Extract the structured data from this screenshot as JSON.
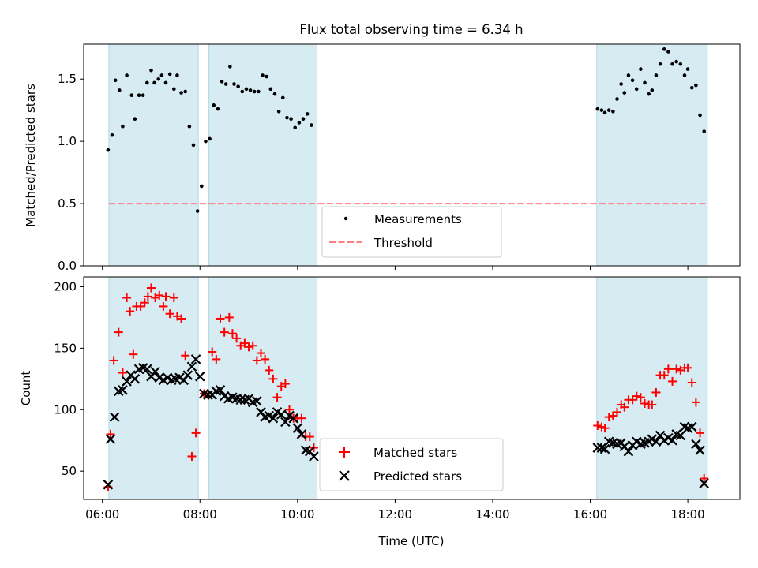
{
  "title": "Flux total observing time = 6.34 h",
  "xlabel": "Time (UTC)",
  "x_ticks": [
    "06:00",
    "08:00",
    "10:00",
    "12:00",
    "14:00",
    "16:00",
    "18:00"
  ],
  "colors": {
    "span": "#add8e6",
    "measurement": "#000000",
    "threshold": "#ff7f7f",
    "matched": "#ff0000",
    "predicted": "#000000"
  },
  "chart_data": [
    {
      "type": "scatter",
      "panel": "top",
      "ylabel": "Matched/Predicted stars",
      "xlim": [
        "05:37",
        "19:04"
      ],
      "ylim": [
        0,
        1.78
      ],
      "y_ticks": [
        "0.0",
        "0.5",
        "1.0",
        "1.5"
      ],
      "shaded_spans": [
        [
          "06:08",
          "07:58"
        ],
        [
          "08:11",
          "10:24"
        ],
        [
          "16:08",
          "18:24"
        ]
      ],
      "threshold": 0.5,
      "legend": [
        "Measurements",
        "Threshold"
      ],
      "legend_position": "lower center",
      "series": [
        {
          "name": "Measurements",
          "marker": "dot",
          "points": [
            [
              "06:07",
              0.93
            ],
            [
              "06:12",
              1.05
            ],
            [
              "06:16",
              1.49
            ],
            [
              "06:21",
              1.41
            ],
            [
              "06:25",
              1.12
            ],
            [
              "06:30",
              1.53
            ],
            [
              "06:36",
              1.37
            ],
            [
              "06:40",
              1.18
            ],
            [
              "06:45",
              1.37
            ],
            [
              "06:50",
              1.37
            ],
            [
              "06:55",
              1.47
            ],
            [
              "07:00",
              1.57
            ],
            [
              "07:04",
              1.47
            ],
            [
              "07:09",
              1.5
            ],
            [
              "07:13",
              1.53
            ],
            [
              "07:18",
              1.47
            ],
            [
              "07:23",
              1.54
            ],
            [
              "07:28",
              1.42
            ],
            [
              "07:32",
              1.53
            ],
            [
              "07:37",
              1.39
            ],
            [
              "07:42",
              1.4
            ],
            [
              "07:47",
              1.12
            ],
            [
              "07:52",
              0.97
            ],
            [
              "07:57",
              0.44
            ],
            [
              "08:02",
              0.64
            ],
            [
              "08:07",
              1.0
            ],
            [
              "08:12",
              1.02
            ],
            [
              "08:17",
              1.29
            ],
            [
              "08:22",
              1.26
            ],
            [
              "08:27",
              1.48
            ],
            [
              "08:32",
              1.46
            ],
            [
              "08:37",
              1.6
            ],
            [
              "08:42",
              1.46
            ],
            [
              "08:47",
              1.44
            ],
            [
              "08:52",
              1.4
            ],
            [
              "08:57",
              1.42
            ],
            [
              "09:02",
              1.41
            ],
            [
              "09:07",
              1.4
            ],
            [
              "09:12",
              1.4
            ],
            [
              "09:17",
              1.53
            ],
            [
              "09:22",
              1.52
            ],
            [
              "09:27",
              1.42
            ],
            [
              "09:32",
              1.38
            ],
            [
              "09:37",
              1.24
            ],
            [
              "09:42",
              1.35
            ],
            [
              "09:47",
              1.19
            ],
            [
              "09:52",
              1.18
            ],
            [
              "09:57",
              1.11
            ],
            [
              "10:02",
              1.15
            ],
            [
              "10:07",
              1.18
            ],
            [
              "10:12",
              1.22
            ],
            [
              "10:17",
              1.13
            ],
            [
              "16:09",
              1.26
            ],
            [
              "16:14",
              1.25
            ],
            [
              "16:18",
              1.23
            ],
            [
              "16:23",
              1.25
            ],
            [
              "16:28",
              1.24
            ],
            [
              "16:33",
              1.34
            ],
            [
              "16:38",
              1.46
            ],
            [
              "16:42",
              1.39
            ],
            [
              "16:47",
              1.53
            ],
            [
              "16:52",
              1.49
            ],
            [
              "16:57",
              1.42
            ],
            [
              "17:02",
              1.58
            ],
            [
              "17:07",
              1.47
            ],
            [
              "17:12",
              1.38
            ],
            [
              "17:16",
              1.41
            ],
            [
              "17:21",
              1.53
            ],
            [
              "17:26",
              1.62
            ],
            [
              "17:31",
              1.74
            ],
            [
              "17:36",
              1.72
            ],
            [
              "17:41",
              1.62
            ],
            [
              "17:46",
              1.64
            ],
            [
              "17:51",
              1.62
            ],
            [
              "17:56",
              1.53
            ],
            [
              "18:00",
              1.58
            ],
            [
              "18:05",
              1.43
            ],
            [
              "18:10",
              1.45
            ],
            [
              "18:15",
              1.21
            ],
            [
              "18:20",
              1.08
            ]
          ]
        }
      ]
    },
    {
      "type": "scatter",
      "panel": "bottom",
      "ylabel": "Count",
      "xlabel": "Time (UTC)",
      "xlim": [
        "05:37",
        "19:04"
      ],
      "ylim": [
        27,
        208
      ],
      "y_ticks": [
        "50",
        "100",
        "150",
        "200"
      ],
      "shaded_spans": [
        [
          "06:08",
          "07:58"
        ],
        [
          "08:11",
          "10:24"
        ],
        [
          "16:08",
          "18:24"
        ]
      ],
      "legend": [
        "Matched stars",
        "Predicted stars"
      ],
      "legend_position": "lower center",
      "series": [
        {
          "name": "Matched stars",
          "marker": "plus",
          "points": [
            [
              "06:07",
              37
            ],
            [
              "06:10",
              80
            ],
            [
              "06:14",
              140
            ],
            [
              "06:20",
              163
            ],
            [
              "06:25",
              130
            ],
            [
              "06:30",
              191
            ],
            [
              "06:34",
              180
            ],
            [
              "06:38",
              145
            ],
            [
              "06:42",
              184
            ],
            [
              "06:47",
              184
            ],
            [
              "06:52",
              187
            ],
            [
              "06:56",
              192
            ],
            [
              "07:00",
              199
            ],
            [
              "07:05",
              191
            ],
            [
              "07:10",
              193
            ],
            [
              "07:15",
              184
            ],
            [
              "07:18",
              192
            ],
            [
              "07:23",
              178
            ],
            [
              "07:28",
              191
            ],
            [
              "07:32",
              176
            ],
            [
              "07:37",
              174
            ],
            [
              "07:42",
              144
            ],
            [
              "07:50",
              62
            ],
            [
              "07:55",
              81
            ],
            [
              "08:05",
              113
            ],
            [
              "08:10",
              113
            ],
            [
              "08:15",
              147
            ],
            [
              "08:20",
              141
            ],
            [
              "08:25",
              174
            ],
            [
              "08:30",
              163
            ],
            [
              "08:36",
              175
            ],
            [
              "08:40",
              162
            ],
            [
              "08:45",
              158
            ],
            [
              "08:50",
              152
            ],
            [
              "08:55",
              154
            ],
            [
              "09:00",
              151
            ],
            [
              "09:05",
              152
            ],
            [
              "09:10",
              140
            ],
            [
              "09:15",
              146
            ],
            [
              "09:20",
              141
            ],
            [
              "09:25",
              132
            ],
            [
              "09:30",
              125
            ],
            [
              "09:35",
              110
            ],
            [
              "09:40",
              119
            ],
            [
              "09:45",
              121
            ],
            [
              "09:50",
              100
            ],
            [
              "09:55",
              93
            ],
            [
              "10:00",
              93
            ],
            [
              "10:05",
              93
            ],
            [
              "10:10",
              78
            ],
            [
              "10:15",
              78
            ],
            [
              "10:20",
              69
            ],
            [
              "16:09",
              87
            ],
            [
              "16:14",
              86
            ],
            [
              "16:18",
              85
            ],
            [
              "16:23",
              94
            ],
            [
              "16:28",
              95
            ],
            [
              "16:33",
              98
            ],
            [
              "16:38",
              104
            ],
            [
              "16:42",
              102
            ],
            [
              "16:47",
              108
            ],
            [
              "16:52",
              108
            ],
            [
              "16:57",
              111
            ],
            [
              "17:02",
              110
            ],
            [
              "17:07",
              105
            ],
            [
              "17:12",
              104
            ],
            [
              "17:16",
              104
            ],
            [
              "17:21",
              114
            ],
            [
              "17:26",
              128
            ],
            [
              "17:31",
              128
            ],
            [
              "17:36",
              133
            ],
            [
              "17:41",
              123
            ],
            [
              "17:46",
              133
            ],
            [
              "17:51",
              132
            ],
            [
              "17:56",
              134
            ],
            [
              "18:00",
              134
            ],
            [
              "18:05",
              122
            ],
            [
              "18:10",
              106
            ],
            [
              "18:15",
              81
            ],
            [
              "18:20",
              44
            ]
          ]
        },
        {
          "name": "Predicted stars",
          "marker": "x",
          "points": [
            [
              "06:07",
              39
            ],
            [
              "06:10",
              76
            ],
            [
              "06:15",
              94
            ],
            [
              "06:20",
              115
            ],
            [
              "06:25",
              116
            ],
            [
              "06:30",
              123
            ],
            [
              "06:35",
              128
            ],
            [
              "06:40",
              125
            ],
            [
              "06:45",
              133
            ],
            [
              "06:50",
              134
            ],
            [
              "06:55",
              133
            ],
            [
              "07:00",
              127
            ],
            [
              "07:05",
              131
            ],
            [
              "07:10",
              126
            ],
            [
              "07:15",
              124
            ],
            [
              "07:20",
              126
            ],
            [
              "07:25",
              124
            ],
            [
              "07:30",
              125
            ],
            [
              "07:35",
              126
            ],
            [
              "07:40",
              124
            ],
            [
              "07:45",
              128
            ],
            [
              "07:50",
              135
            ],
            [
              "07:55",
              141
            ],
            [
              "08:00",
              127
            ],
            [
              "08:05",
              113
            ],
            [
              "08:10",
              112
            ],
            [
              "08:15",
              112
            ],
            [
              "08:20",
              115
            ],
            [
              "08:25",
              116
            ],
            [
              "08:30",
              111
            ],
            [
              "08:35",
              109
            ],
            [
              "08:40",
              110
            ],
            [
              "08:45",
              109
            ],
            [
              "08:50",
              108
            ],
            [
              "08:55",
              108
            ],
            [
              "09:00",
              109
            ],
            [
              "09:05",
              106
            ],
            [
              "09:10",
              107
            ],
            [
              "09:15",
              98
            ],
            [
              "09:20",
              94
            ],
            [
              "09:25",
              95
            ],
            [
              "09:30",
              93
            ],
            [
              "09:35",
              98
            ],
            [
              "09:40",
              96
            ],
            [
              "09:45",
              90
            ],
            [
              "09:50",
              95
            ],
            [
              "09:55",
              93
            ],
            [
              "10:00",
              85
            ],
            [
              "10:05",
              80
            ],
            [
              "10:10",
              67
            ],
            [
              "10:15",
              66
            ],
            [
              "10:20",
              62
            ],
            [
              "16:09",
              69
            ],
            [
              "16:14",
              69
            ],
            [
              "16:18",
              68
            ],
            [
              "16:23",
              74
            ],
            [
              "16:28",
              73
            ],
            [
              "16:33",
              72
            ],
            [
              "16:38",
              73
            ],
            [
              "16:42",
              70
            ],
            [
              "16:47",
              66
            ],
            [
              "16:52",
              71
            ],
            [
              "16:57",
              74
            ],
            [
              "17:02",
              72
            ],
            [
              "17:07",
              73
            ],
            [
              "17:12",
              74
            ],
            [
              "17:16",
              76
            ],
            [
              "17:21",
              74
            ],
            [
              "17:26",
              79
            ],
            [
              "17:31",
              75
            ],
            [
              "17:36",
              77
            ],
            [
              "17:41",
              75
            ],
            [
              "17:46",
              80
            ],
            [
              "17:51",
              79
            ],
            [
              "17:56",
              86
            ],
            [
              "18:00",
              85
            ],
            [
              "18:05",
              86
            ],
            [
              "18:10",
              72
            ],
            [
              "18:15",
              67
            ],
            [
              "18:20",
              40
            ]
          ]
        }
      ]
    }
  ]
}
